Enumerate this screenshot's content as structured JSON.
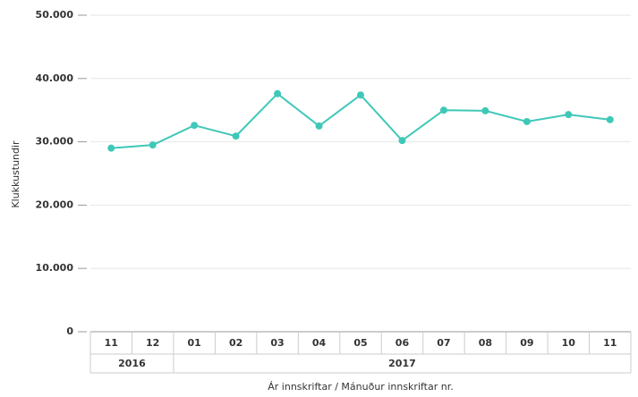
{
  "chart_data": {
    "type": "line",
    "y_label": "Klukkustundir",
    "x_label": "Ár innskriftar / Mánuður innskriftar nr.",
    "categories": [
      "11",
      "12",
      "01",
      "02",
      "03",
      "04",
      "05",
      "06",
      "07",
      "08",
      "09",
      "10",
      "11"
    ],
    "category_groups": [
      "2016",
      "2016",
      "2017",
      "2017",
      "2017",
      "2017",
      "2017",
      "2017",
      "2017",
      "2017",
      "2017",
      "2017",
      "2017"
    ],
    "series": [
      {
        "color": "#3fc8b8",
        "values": [
          29000,
          29500,
          32600,
          30900,
          37600,
          32500,
          37400,
          30200,
          35000,
          34900,
          33200,
          34300,
          33500
        ]
      }
    ],
    "ylim": [
      0,
      50000
    ],
    "yticks": [
      0,
      {
        "value": 10000,
        "label": "10.000"
      },
      {
        "value": 20000,
        "label": "20.000"
      },
      {
        "value": 30000,
        "label": "30.000"
      },
      {
        "value": 40000,
        "label": "40.000"
      },
      {
        "value": 50000,
        "label": "50.000"
      }
    ],
    "grid": true
  }
}
